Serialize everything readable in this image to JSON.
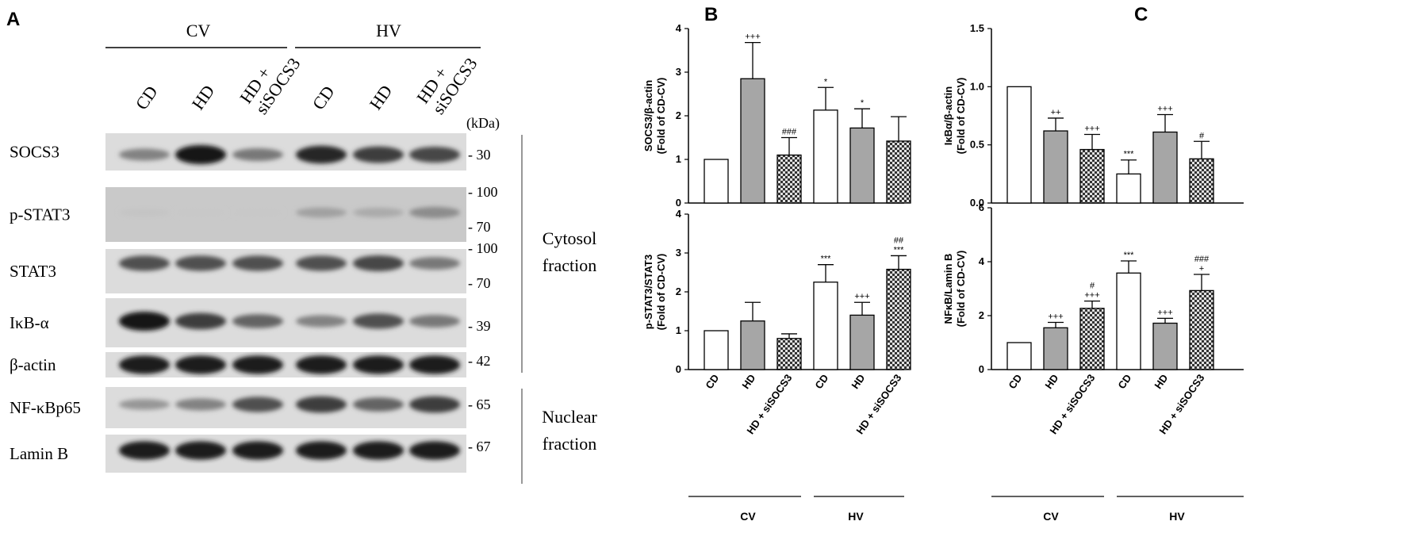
{
  "panels": {
    "a": "A",
    "b": "B",
    "c": "C"
  },
  "blot": {
    "groups": [
      "CV",
      "HV"
    ],
    "lanes": [
      "CD",
      "HD",
      "HD +\nsiSOCS3",
      "CD",
      "HD",
      "HD +\nsiSOCS3"
    ],
    "kda_label": "(kDa)",
    "rows": [
      {
        "label": "SOCS3",
        "markers": [
          "30"
        ],
        "intensity": [
          0.45,
          1.0,
          0.5,
          0.9,
          0.8,
          0.75
        ]
      },
      {
        "label": "p-STAT3",
        "markers": [
          "100",
          "70"
        ],
        "intensity": [
          0.12,
          0.1,
          0.1,
          0.3,
          0.25,
          0.4
        ]
      },
      {
        "label": "STAT3",
        "markers": [
          "100",
          "70"
        ],
        "intensity": [
          0.7,
          0.7,
          0.7,
          0.7,
          0.75,
          0.5
        ]
      },
      {
        "label": "IκB-α",
        "markers": [
          "39"
        ],
        "intensity": [
          1.0,
          0.8,
          0.6,
          0.45,
          0.7,
          0.5
        ]
      },
      {
        "label": "β-actin",
        "markers": [
          "42"
        ],
        "intensity": [
          0.95,
          0.95,
          0.95,
          0.95,
          0.95,
          0.95
        ]
      },
      {
        "label": "NF-κBp65",
        "markers": [
          "65"
        ],
        "intensity": [
          0.35,
          0.45,
          0.7,
          0.8,
          0.6,
          0.8
        ]
      },
      {
        "label": "Lamin B",
        "markers": [
          "67"
        ],
        "intensity": [
          0.95,
          0.95,
          0.95,
          0.95,
          0.95,
          0.95
        ]
      }
    ],
    "fractions": [
      {
        "line1": "Cytosol",
        "line2": "fraction"
      },
      {
        "line1": "Nuclear",
        "line2": "fraction"
      }
    ]
  },
  "chart_data": [
    {
      "type": "bar",
      "categories": [
        "CD",
        "HD",
        "HD + siSOCS3",
        "CD",
        "HD",
        "HD + siSOCS3"
      ],
      "values": [
        1.0,
        2.85,
        1.1,
        2.13,
        1.72,
        1.42
      ],
      "errors": [
        0,
        0.83,
        0.4,
        0.52,
        0.44,
        0.56
      ],
      "significance": [
        "",
        "+++",
        "###",
        "*",
        "*",
        ""
      ],
      "ylabel_line1": "SOCS3/β-actin",
      "ylabel_line2": "(Fold of CD-CV)",
      "ylim": [
        0,
        4
      ],
      "yticks": [
        "0",
        "1",
        "2",
        "3",
        "4"
      ],
      "groups": [
        "CV",
        "HV"
      ]
    },
    {
      "type": "bar",
      "categories": [
        "CD",
        "HD",
        "HD + siSOCS3",
        "CD",
        "HD",
        "HD + siSOCS3"
      ],
      "values": [
        1.0,
        1.25,
        0.8,
        2.25,
        1.4,
        2.58
      ],
      "errors": [
        0,
        0.48,
        0.12,
        0.45,
        0.33,
        0.35
      ],
      "significance": [
        "",
        "",
        "",
        "***",
        "+++",
        "##\n***"
      ],
      "ylabel_line1": "p-STAT3/STAT3",
      "ylabel_line2": "(Fold of CD-CV)",
      "ylim": [
        0,
        4
      ],
      "yticks": [
        "0",
        "1",
        "2",
        "3",
        "4"
      ],
      "groups": [
        "CV",
        "HV"
      ]
    },
    {
      "type": "bar",
      "categories": [
        "CD",
        "HD",
        "HD + siSOCS3",
        "CD",
        "HD",
        "HD + siSOCS3"
      ],
      "values": [
        1.0,
        0.62,
        0.46,
        0.25,
        0.61,
        0.38
      ],
      "errors": [
        0,
        0.11,
        0.13,
        0.12,
        0.15,
        0.15
      ],
      "significance": [
        "",
        "++",
        "+++",
        "***",
        "+++",
        "#"
      ],
      "ylabel_line1": "IκBα/β-actin",
      "ylabel_line2": "(Fold of CD-CV)",
      "ylim": [
        0,
        1.5
      ],
      "yticks": [
        "0.0",
        "0.5",
        "1.0",
        "1.5"
      ],
      "groups": [
        "CV",
        "HV"
      ]
    },
    {
      "type": "bar",
      "categories": [
        "CD",
        "HD",
        "HD + siSOCS3",
        "CD",
        "HD",
        "HD + siSOCS3"
      ],
      "values": [
        1.0,
        1.55,
        2.27,
        3.58,
        1.72,
        2.93
      ],
      "errors": [
        0,
        0.2,
        0.27,
        0.45,
        0.18,
        0.6
      ],
      "significance": [
        "",
        "+++",
        "#\n+++",
        "***",
        "+++",
        "###\n+"
      ],
      "ylabel_line1": "NFκB/Lamin B",
      "ylabel_line2": "(Fold of CD-CV)",
      "ylim": [
        0,
        6
      ],
      "yticks": [
        "0",
        "2",
        "4",
        "6"
      ],
      "groups": [
        "CV",
        "HV"
      ]
    }
  ],
  "colors": {
    "cd": "#ffffff",
    "hd": "#a6a6a6",
    "sisocs3": "#4a4a4a",
    "axis": "#000000"
  }
}
